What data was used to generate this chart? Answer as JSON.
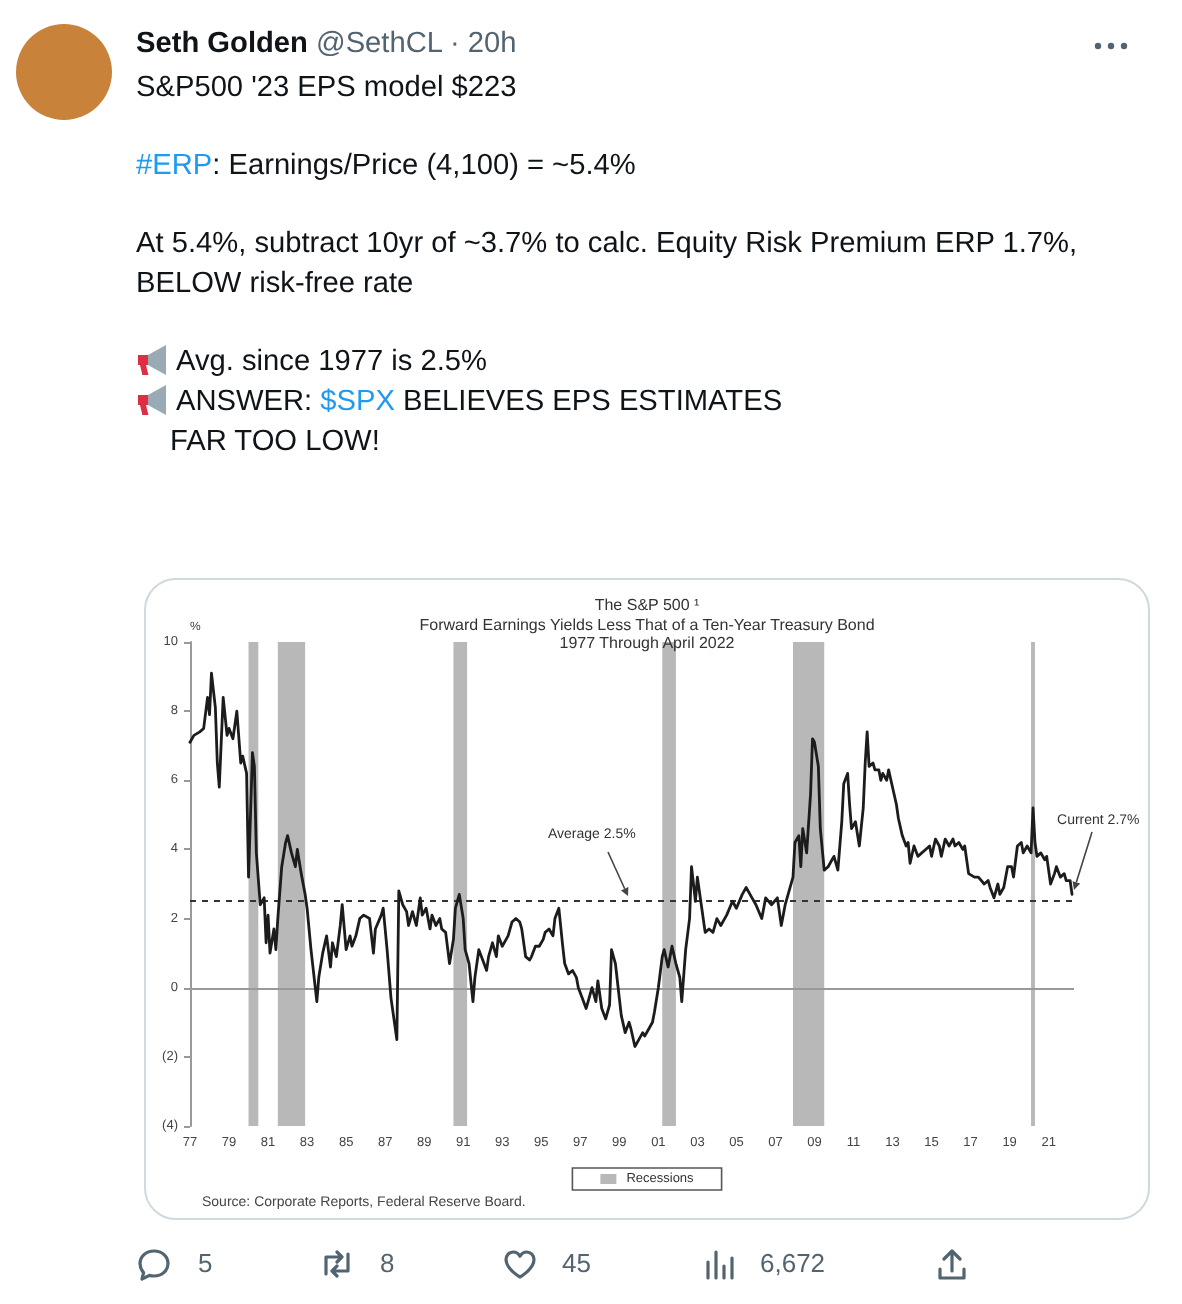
{
  "chart_data": {
    "type": "line",
    "title": "The S&P 500 ¹",
    "subtitle": "Forward Earnings Yields Less That of a Ten-Year Treasury Bond\n1977 Through April 2022",
    "ylabel": "%",
    "x": [
      1977.0,
      1977.2,
      1977.5,
      1977.7,
      1977.9,
      1978.0,
      1978.1,
      1978.3,
      1978.4,
      1978.5,
      1978.7,
      1978.9,
      1979.0,
      1979.2,
      1979.4,
      1979.6,
      1979.7,
      1979.9,
      1980.0,
      1980.2,
      1980.3,
      1980.4,
      1980.6,
      1980.8,
      1980.9,
      1981.0,
      1981.1,
      1981.3,
      1981.4,
      1981.5,
      1981.7,
      1981.9,
      1982.0,
      1982.2,
      1982.4,
      1982.5,
      1982.7,
      1982.9,
      1983.0,
      1983.2,
      1983.5,
      1983.6,
      1983.8,
      1984.0,
      1984.2,
      1984.3,
      1984.5,
      1984.7,
      1984.8,
      1985.0,
      1985.2,
      1985.3,
      1985.5,
      1985.7,
      1985.9,
      1986.2,
      1986.4,
      1986.5,
      1986.8,
      1986.9,
      1987.1,
      1987.3,
      1987.6,
      1987.7,
      1987.9,
      1988.1,
      1988.2,
      1988.4,
      1988.6,
      1988.8,
      1988.9,
      1989.1,
      1989.3,
      1989.4,
      1989.6,
      1989.8,
      1989.9,
      1990.1,
      1990.3,
      1990.5,
      1990.6,
      1990.8,
      1991.0,
      1991.1,
      1991.3,
      1991.5,
      1991.6,
      1991.8,
      1992.0,
      1992.2,
      1992.3,
      1992.5,
      1992.7,
      1992.8,
      1993.0,
      1993.2,
      1993.3,
      1993.5,
      1993.7,
      1993.9,
      1994.0,
      1994.2,
      1994.4,
      1994.5,
      1994.7,
      1994.9,
      1995.1,
      1995.2,
      1995.4,
      1995.6,
      1995.7,
      1995.9,
      1996.1,
      1996.2,
      1996.4,
      1996.6,
      1996.8,
      1996.9,
      1997.1,
      1997.3,
      1997.4,
      1997.6,
      1997.8,
      1997.9,
      1998.1,
      1998.3,
      1998.5,
      1998.6,
      1998.8,
      1999.0,
      1999.1,
      1999.3,
      1999.5,
      1999.6,
      1999.8,
      2000.0,
      2000.2,
      2000.3,
      2000.5,
      2000.7,
      2000.8,
      2001.0,
      2001.2,
      2001.3,
      2001.5,
      2001.7,
      2001.9,
      2002.1,
      2002.2,
      2002.4,
      2002.6,
      2002.7,
      2002.9,
      2003.0,
      2003.2,
      2003.4,
      2003.6,
      2003.8,
      2004.0,
      2004.2,
      2004.5,
      2004.8,
      2005.0,
      2005.3,
      2005.5,
      2005.8,
      2006.0,
      2006.3,
      2006.5,
      2006.8,
      2007.1,
      2007.3,
      2007.5,
      2007.7,
      2007.9,
      2008.0,
      2008.2,
      2008.3,
      2008.4,
      2008.6,
      2008.8,
      2008.9,
      2009.0,
      2009.2,
      2009.3,
      2009.5,
      2009.7,
      2009.9,
      2010.0,
      2010.2,
      2010.4,
      2010.5,
      2010.7,
      2010.8,
      2010.9,
      2011.1,
      2011.3,
      2011.5,
      2011.6,
      2011.7,
      2011.8,
      2012.0,
      2012.1,
      2012.3,
      2012.4,
      2012.5,
      2012.7,
      2012.8,
      2013.0,
      2013.2,
      2013.3,
      2013.5,
      2013.7,
      2013.8,
      2013.9,
      2014.1,
      2014.3,
      2014.5,
      2014.7,
      2014.9,
      2015.0,
      2015.2,
      2015.4,
      2015.5,
      2015.7,
      2015.9,
      2016.1,
      2016.2,
      2016.4,
      2016.6,
      2016.7,
      2016.9,
      2017.2,
      2017.4,
      2017.7,
      2017.9,
      2018.0,
      2018.2,
      2018.4,
      2018.5,
      2018.7,
      2018.9,
      2019.1,
      2019.2,
      2019.4,
      2019.6,
      2019.7,
      2019.9,
      2020.1,
      2020.2,
      2020.3,
      2020.4,
      2020.6,
      2020.8,
      2020.9,
      2021.1,
      2021.3,
      2021.4,
      2021.6,
      2021.8,
      2021.9,
      2022.1,
      2022.2
    ],
    "values": [
      7.1,
      7.3,
      7.4,
      7.5,
      8.4,
      7.9,
      9.1,
      8.1,
      6.5,
      5.8,
      8.4,
      7.3,
      7.5,
      7.2,
      8.0,
      6.5,
      6.7,
      6.2,
      3.2,
      6.8,
      6.4,
      3.9,
      2.4,
      2.6,
      1.3,
      2.1,
      1.0,
      1.7,
      1.1,
      2.0,
      3.5,
      4.2,
      4.4,
      3.9,
      3.5,
      4.0,
      3.3,
      2.7,
      2.3,
      1.1,
      -0.4,
      0.3,
      1.0,
      1.5,
      0.6,
      1.3,
      0.9,
      1.8,
      2.4,
      1.1,
      1.5,
      1.2,
      1.5,
      2.0,
      2.1,
      2.0,
      1.0,
      1.7,
      2.1,
      2.3,
      1.1,
      -0.3,
      -1.5,
      2.8,
      2.4,
      2.2,
      1.8,
      2.2,
      1.8,
      2.6,
      2.1,
      2.3,
      1.7,
      2.1,
      1.8,
      2.0,
      1.7,
      1.6,
      0.7,
      1.4,
      2.3,
      2.7,
      2.0,
      1.1,
      0.7,
      -0.4,
      0.3,
      1.1,
      0.8,
      0.5,
      0.9,
      1.3,
      0.9,
      1.5,
      1.2,
      1.4,
      1.5,
      1.9,
      2.0,
      1.9,
      1.7,
      0.9,
      0.8,
      0.9,
      1.2,
      1.2,
      1.4,
      1.6,
      1.7,
      1.5,
      2.0,
      2.3,
      1.2,
      0.7,
      0.4,
      0.5,
      0.3,
      0.0,
      -0.3,
      -0.6,
      -0.4,
      0.0,
      -0.4,
      0.2,
      -0.6,
      -0.9,
      -0.5,
      1.1,
      0.7,
      -0.3,
      -0.8,
      -1.3,
      -1.0,
      -1.2,
      -1.7,
      -1.5,
      -1.3,
      -1.4,
      -1.2,
      -1.0,
      -0.7,
      0.0,
      0.9,
      1.1,
      0.6,
      1.2,
      0.7,
      0.3,
      -0.4,
      1.1,
      2.0,
      3.5,
      2.5,
      3.2,
      2.4,
      1.6,
      1.7,
      1.6,
      2.0,
      1.8,
      2.1,
      2.5,
      2.3,
      2.7,
      2.9,
      2.6,
      2.4,
      2.0,
      2.6,
      2.4,
      2.6,
      1.8,
      2.4,
      2.8,
      3.2,
      4.2,
      4.4,
      3.5,
      4.6,
      3.9,
      5.6,
      7.2,
      7.1,
      6.4,
      4.6,
      3.4,
      3.5,
      3.7,
      3.8,
      3.4,
      4.8,
      5.9,
      6.2,
      5.3,
      4.6,
      4.8,
      4.1,
      5.2,
      6.5,
      7.4,
      6.4,
      6.5,
      6.3,
      6.3,
      6.0,
      6.2,
      6.0,
      6.3,
      5.8,
      5.3,
      4.9,
      4.4,
      4.1,
      4.2,
      3.6,
      4.1,
      3.8,
      3.9,
      4.0,
      4.1,
      3.8,
      4.3,
      4.1,
      3.8,
      4.3,
      4.1,
      4.3,
      4.1,
      4.2,
      4.0,
      4.1,
      3.3,
      3.2,
      3.2,
      3.0,
      3.1,
      2.9,
      2.6,
      3.0,
      2.7,
      2.9,
      3.5,
      3.5,
      3.2,
      4.1,
      4.2,
      3.9,
      4.1,
      3.9,
      5.2,
      4.2,
      3.8,
      3.9,
      3.7,
      3.8,
      3.0,
      3.3,
      3.5,
      3.2,
      3.3,
      3.1,
      3.1,
      2.7
    ],
    "color": "#1c1c1c",
    "xlim": [
      1977,
      2022.3
    ],
    "xticks": [
      {
        "value": 1977,
        "label": "77"
      },
      {
        "value": 1979,
        "label": "79"
      },
      {
        "value": 1981,
        "label": "81"
      },
      {
        "value": 1983,
        "label": "83"
      },
      {
        "value": 1985,
        "label": "85"
      },
      {
        "value": 1987,
        "label": "87"
      },
      {
        "value": 1989,
        "label": "89"
      },
      {
        "value": 1991,
        "label": "91"
      },
      {
        "value": 1993,
        "label": "93"
      },
      {
        "value": 1995,
        "label": "95"
      },
      {
        "value": 1997,
        "label": "97"
      },
      {
        "value": 1999,
        "label": "99"
      },
      {
        "value": 2001,
        "label": "01"
      },
      {
        "value": 2003,
        "label": "03"
      },
      {
        "value": 2005,
        "label": "05"
      },
      {
        "value": 2007,
        "label": "07"
      },
      {
        "value": 2009,
        "label": "09"
      },
      {
        "value": 2011,
        "label": "11"
      },
      {
        "value": 2013,
        "label": "13"
      },
      {
        "value": 2015,
        "label": "15"
      },
      {
        "value": 2017,
        "label": "17"
      },
      {
        "value": 2019,
        "label": "19"
      },
      {
        "value": 2021,
        "label": "21"
      }
    ],
    "ylim": [
      -4,
      10
    ],
    "yticks": [
      {
        "value": -4,
        "label": "(4)"
      },
      {
        "value": -2,
        "label": "(2)"
      },
      0,
      2,
      4,
      6,
      8,
      10
    ],
    "bands": [
      {
        "axis": "x",
        "from": 1980.0,
        "to": 1980.5,
        "label": "Recessions",
        "color": "#b8b8b8"
      },
      {
        "axis": "x",
        "from": 1981.5,
        "to": 1982.9,
        "color": "#b8b8b8"
      },
      {
        "axis": "x",
        "from": 1990.5,
        "to": 1991.2,
        "color": "#b8b8b8"
      },
      {
        "axis": "x",
        "from": 2001.2,
        "to": 2001.9,
        "color": "#b8b8b8"
      },
      {
        "axis": "x",
        "from": 2007.9,
        "to": 2009.5,
        "color": "#b8b8b8"
      },
      {
        "axis": "x",
        "from": 2020.1,
        "to": 2020.3,
        "color": "#b8b8b8"
      }
    ],
    "ref_lines": [
      {
        "axis": "y",
        "value": 2.5,
        "label": "Average 2.5%",
        "line_style": "dashed",
        "color": "#333333"
      },
      {
        "axis": "y",
        "value": 0,
        "color": "#999999"
      }
    ],
    "legend": "bottom",
    "annotations": [
      "Seth Golden",
      "@SethCL · 20h",
      "S&P500 '23 EPS model $223",
      "#ERP: Earnings/Price (4,100) = ~5.4%",
      "At 5.4%, subtract 10yr of ~3.7% to calc. Equity Risk Premium ERP 1.7%,",
      "BELOW risk-free rate",
      "Avg. since 1977 is 2.5%",
      "ANSWER: $SPX BELIEVES EPS ESTIMATES",
      "FAR TOO LOW!",
      "Source: Corporate Reports, Federal Reserve Board.",
      {
        "text": "Current 2.7%",
        "x": 2022.2,
        "y": 2.7
      },
      "5",
      "8",
      "45",
      "6,672"
    ]
  }
}
